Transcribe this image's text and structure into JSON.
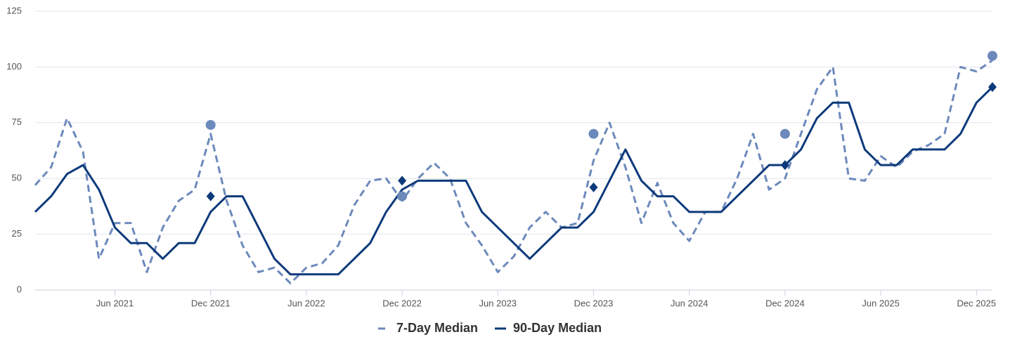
{
  "chart_data": {
    "type": "line",
    "x": [
      "2021-01",
      "2021-02",
      "2021-03",
      "2021-04",
      "2021-05",
      "2021-06",
      "2021-07",
      "2021-08",
      "2021-09",
      "2021-10",
      "2021-11",
      "2021-12",
      "2022-01",
      "2022-02",
      "2022-03",
      "2022-04",
      "2022-05",
      "2022-06",
      "2022-07",
      "2022-08",
      "2022-09",
      "2022-10",
      "2022-11",
      "2022-12",
      "2023-01",
      "2023-02",
      "2023-03",
      "2023-04",
      "2023-05",
      "2023-06",
      "2023-07",
      "2023-08",
      "2023-09",
      "2023-10",
      "2023-11",
      "2023-12",
      "2024-01",
      "2024-02",
      "2024-03",
      "2024-04",
      "2024-05",
      "2024-06",
      "2024-07",
      "2024-08",
      "2024-09",
      "2024-10",
      "2024-11",
      "2024-12",
      "2025-01",
      "2025-02",
      "2025-03",
      "2025-04",
      "2025-05",
      "2025-06",
      "2025-07",
      "2025-08",
      "2025-09",
      "2025-10",
      "2025-11",
      "2025-12",
      "2026-01"
    ],
    "series": [
      {
        "name": "7-Day Median",
        "color": "#6c89bb",
        "dash": true,
        "values": [
          47,
          55,
          77,
          62,
          14,
          30,
          30,
          8,
          28,
          40,
          45,
          70,
          40,
          20,
          8,
          10,
          3,
          10,
          12,
          20,
          38,
          49,
          50,
          40,
          50,
          57,
          50,
          30,
          20,
          8,
          15,
          28,
          35,
          28,
          30,
          58,
          75,
          55,
          30,
          48,
          30,
          22,
          35,
          35,
          50,
          70,
          45,
          50,
          70,
          90,
          100,
          50,
          49,
          60,
          55,
          62,
          65,
          70,
          100,
          98,
          103
        ],
        "markers": {
          "shape": "circle",
          "x": [
            "2021-12",
            "2022-12",
            "2023-12",
            "2024-12",
            "2026-01"
          ],
          "values": [
            74,
            42,
            70,
            70,
            105
          ]
        }
      },
      {
        "name": "90-Day Median",
        "color": "#0d3a7a",
        "dash": false,
        "values": [
          35,
          42,
          52,
          56,
          45,
          28,
          21,
          21,
          14,
          21,
          21,
          35,
          42,
          42,
          28,
          14,
          7,
          7,
          7,
          7,
          14,
          21,
          35,
          45,
          49,
          49,
          49,
          49,
          35,
          28,
          21,
          14,
          21,
          28,
          28,
          35,
          49,
          63,
          49,
          42,
          42,
          35,
          35,
          35,
          42,
          49,
          56,
          56,
          63,
          77,
          84,
          84,
          63,
          56,
          56,
          63,
          63,
          63,
          70,
          84,
          91
        ],
        "markers": {
          "shape": "diamond",
          "x": [
            "2021-12",
            "2022-12",
            "2023-12",
            "2024-12",
            "2026-01"
          ],
          "values": [
            42,
            49,
            46,
            56,
            91
          ]
        }
      }
    ],
    "xlim": [
      "2021-01",
      "2026-01"
    ],
    "xticks": [
      {
        "value": "2021-06",
        "label": "Jun 2021"
      },
      {
        "value": "2021-12",
        "label": "Dec 2021"
      },
      {
        "value": "2022-06",
        "label": "Jun 2022"
      },
      {
        "value": "2022-12",
        "label": "Dec 2022"
      },
      {
        "value": "2023-06",
        "label": "Jun 2023"
      },
      {
        "value": "2023-12",
        "label": "Dec 2023"
      },
      {
        "value": "2024-06",
        "label": "Jun 2024"
      },
      {
        "value": "2024-12",
        "label": "Dec 2024"
      },
      {
        "value": "2025-06",
        "label": "Jun 2025"
      },
      {
        "value": "2025-12",
        "label": "Dec 2025"
      }
    ],
    "ylim": [
      0,
      125
    ],
    "yticks": [
      0,
      25,
      50,
      75,
      100,
      125
    ],
    "grid": true,
    "legend": "bottom"
  }
}
